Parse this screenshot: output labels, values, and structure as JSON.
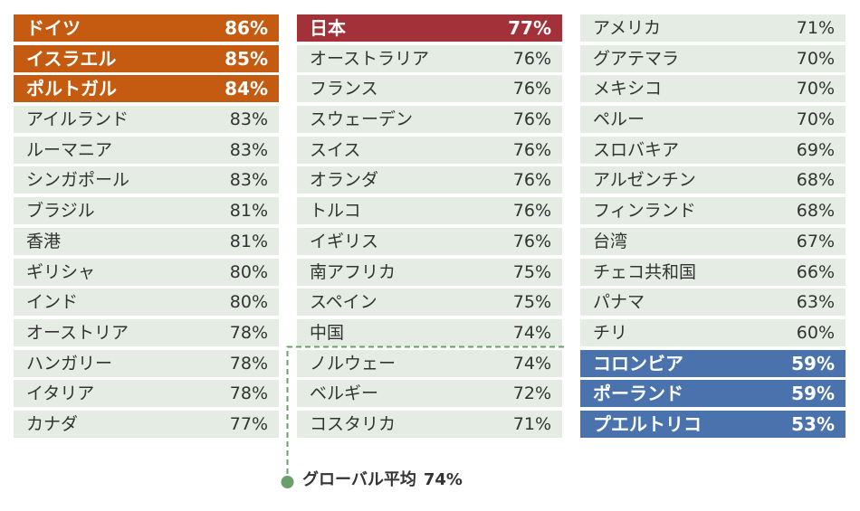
{
  "colors": {
    "top": "#c55a11",
    "japan": "#a3313a",
    "bottom": "#4a73ad",
    "row_bg": "#e4ece3",
    "avg_line": "#6aa06a"
  },
  "chart_data": {
    "type": "table",
    "columns": [
      [
        {
          "name": "ドイツ",
          "value": "86%",
          "highlight": "top"
        },
        {
          "name": "イスラエル",
          "value": "85%",
          "highlight": "top"
        },
        {
          "name": "ポルトガル",
          "value": "84%",
          "highlight": "top"
        },
        {
          "name": "アイルランド",
          "value": "83%"
        },
        {
          "name": "ルーマニア",
          "value": "83%"
        },
        {
          "name": "シンガポール",
          "value": "83%"
        },
        {
          "name": "ブラジル",
          "value": "81%"
        },
        {
          "name": "香港",
          "value": "81%"
        },
        {
          "name": "ギリシャ",
          "value": "80%"
        },
        {
          "name": "インド",
          "value": "80%"
        },
        {
          "name": "オーストリア",
          "value": "78%"
        },
        {
          "name": "ハンガリー",
          "value": "78%"
        },
        {
          "name": "イタリア",
          "value": "78%"
        },
        {
          "name": "カナダ",
          "value": "77%"
        }
      ],
      [
        {
          "name": "日本",
          "value": "77%",
          "highlight": "japan"
        },
        {
          "name": "オーストラリア",
          "value": "76%"
        },
        {
          "name": "フランス",
          "value": "76%"
        },
        {
          "name": "スウェーデン",
          "value": "76%"
        },
        {
          "name": "スイス",
          "value": "76%"
        },
        {
          "name": "オランダ",
          "value": "76%"
        },
        {
          "name": "トルコ",
          "value": "76%"
        },
        {
          "name": "イギリス",
          "value": "76%"
        },
        {
          "name": "南アフリカ",
          "value": "75%"
        },
        {
          "name": "スペイン",
          "value": "75%"
        },
        {
          "name": "中国",
          "value": "74%"
        },
        {
          "name": "ノルウェー",
          "value": "74%"
        },
        {
          "name": "ベルギー",
          "value": "72%"
        },
        {
          "name": "コスタリカ",
          "value": "71%"
        }
      ],
      [
        {
          "name": "アメリカ",
          "value": "71%"
        },
        {
          "name": "グアテマラ",
          "value": "70%"
        },
        {
          "name": "メキシコ",
          "value": "70%"
        },
        {
          "name": "ペルー",
          "value": "70%"
        },
        {
          "name": "スロバキア",
          "value": "69%"
        },
        {
          "name": "アルゼンチン",
          "value": "68%"
        },
        {
          "name": "フィンランド",
          "value": "68%"
        },
        {
          "name": "台湾",
          "value": "67%"
        },
        {
          "name": "チェコ共和国",
          "value": "66%"
        },
        {
          "name": "パナマ",
          "value": "63%"
        },
        {
          "name": "チリ",
          "value": "60%"
        },
        {
          "name": "コロンビア",
          "value": "59%",
          "highlight": "bottom"
        },
        {
          "name": "ポーランド",
          "value": "59%",
          "highlight": "bottom"
        },
        {
          "name": "プエルトリコ",
          "value": "53%",
          "highlight": "bottom"
        }
      ]
    ],
    "global_average": {
      "label": "グローバル平均",
      "value": "74%"
    }
  }
}
